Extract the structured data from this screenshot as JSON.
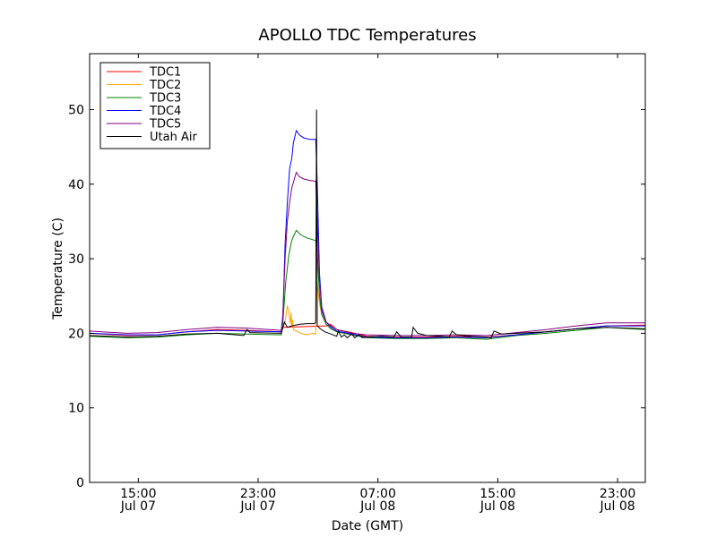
{
  "chart_data": {
    "type": "line",
    "title": "APOLLO TDC Temperatures",
    "xlabel": "Date (GMT)",
    "ylabel": "Temperature (C)",
    "xlim": [
      9.5,
      46.6
    ],
    "ylim": [
      0,
      57.5
    ],
    "yticks": [
      0,
      10,
      20,
      30,
      40,
      50
    ],
    "xticks": [
      {
        "x": 12.75,
        "time": "15:00",
        "date": "Jul 07"
      },
      {
        "x": 20.75,
        "time": "23:00",
        "date": "Jul 07"
      },
      {
        "x": 28.75,
        "time": "07:00",
        "date": "Jul 08"
      },
      {
        "x": 36.75,
        "time": "15:00",
        "date": "Jul 08"
      },
      {
        "x": 44.75,
        "time": "23:00",
        "date": "Jul 08"
      }
    ],
    "legend_position": "top-left",
    "series": [
      {
        "name": "TDC1",
        "color": "#ff0000",
        "x": [
          9.5,
          12,
          14,
          16,
          18,
          20,
          22.3,
          22.4,
          25.3,
          25.6,
          26,
          27,
          28,
          30,
          32,
          34,
          36,
          38,
          40,
          42,
          44,
          46.6
        ],
        "y": [
          20.0,
          19.7,
          19.8,
          20.2,
          20.5,
          20.4,
          20.2,
          20.8,
          21.0,
          21.2,
          20.5,
          20.1,
          19.6,
          19.5,
          19.5,
          19.6,
          19.5,
          19.8,
          20.2,
          20.6,
          21.0,
          21.1
        ]
      },
      {
        "name": "TDC2",
        "color": "#ffa500",
        "x": [
          22.3,
          22.55,
          22.7,
          22.8,
          22.9,
          22.95,
          23.0,
          23.05,
          23.1,
          23.3,
          23.6,
          24.0,
          24.4,
          24.6,
          24.62,
          24.7,
          24.85,
          25.0,
          25.3,
          25.6,
          26
        ],
        "y": [
          20.2,
          21.5,
          23.7,
          22.8,
          21.3,
          22.8,
          20.8,
          21.8,
          20.5,
          20.3,
          20.0,
          19.8,
          20.0,
          19.9,
          26.8,
          26.5,
          24.0,
          22.5,
          21.5,
          21.0,
          20.5
        ]
      },
      {
        "name": "TDC3",
        "color": "#008000",
        "x": [
          9.5,
          12,
          14,
          16,
          18,
          20,
          22.3,
          22.4,
          22.6,
          22.8,
          23.0,
          23.3,
          23.6,
          24.0,
          24.5,
          24.6,
          24.7,
          24.85,
          25.0,
          25.3,
          25.6,
          26,
          27,
          28,
          30,
          32,
          34,
          36,
          38,
          40,
          42,
          44,
          46.6
        ],
        "y": [
          19.6,
          19.4,
          19.5,
          19.8,
          20.0,
          19.9,
          19.8,
          21.5,
          27.0,
          30.5,
          32.5,
          33.8,
          33.2,
          32.8,
          32.5,
          32.4,
          31.0,
          25.0,
          22.5,
          21.2,
          20.6,
          20.2,
          19.8,
          19.4,
          19.3,
          19.3,
          19.4,
          19.2,
          19.7,
          20.0,
          20.4,
          20.8,
          20.5
        ]
      },
      {
        "name": "TDC4",
        "color": "#0000ff",
        "x": [
          9.5,
          12,
          14,
          16,
          18,
          20,
          22.3,
          22.4,
          22.55,
          22.7,
          22.85,
          23.0,
          23.1,
          23.3,
          23.5,
          23.8,
          24.2,
          24.6,
          24.7,
          24.85,
          25.0,
          25.3,
          25.6,
          26,
          27,
          28,
          30,
          32,
          34,
          36,
          38,
          40,
          42,
          44,
          46.6
        ],
        "y": [
          20.0,
          19.8,
          19.8,
          20.2,
          20.4,
          20.3,
          20.2,
          22.0,
          32.0,
          37.5,
          42.0,
          43.5,
          45.5,
          47.2,
          46.6,
          46.2,
          46.0,
          46.0,
          40.0,
          28.0,
          23.5,
          21.5,
          20.8,
          20.3,
          19.9,
          19.5,
          19.4,
          19.4,
          19.5,
          19.4,
          19.8,
          20.2,
          20.6,
          21.0,
          21.0
        ]
      },
      {
        "name": "TDC5",
        "color": "#800080",
        "x": [
          9.5,
          12,
          14,
          16,
          18,
          20,
          22.3,
          22.4,
          22.55,
          22.7,
          22.85,
          23.0,
          23.1,
          23.3,
          23.5,
          23.8,
          24.2,
          24.6,
          24.7,
          24.85,
          25.0,
          25.3,
          25.6,
          26,
          27,
          28,
          30,
          32,
          34,
          36,
          38,
          40,
          42,
          44,
          46.6
        ],
        "y": [
          20.3,
          20.0,
          20.1,
          20.5,
          20.8,
          20.7,
          20.4,
          22.5,
          30.0,
          35.0,
          37.5,
          39.5,
          40.2,
          41.6,
          41.0,
          40.7,
          40.5,
          40.4,
          35.0,
          27.0,
          23.0,
          21.5,
          21.0,
          20.5,
          20.0,
          19.8,
          19.7,
          19.7,
          19.8,
          19.7,
          20.1,
          20.5,
          21.0,
          21.4,
          21.4
        ]
      },
      {
        "name": "Utah Air",
        "color": "#000000",
        "x": [
          9.5,
          12,
          14,
          16,
          18,
          19.8,
          20.0,
          20.2,
          22.3,
          22.5,
          22.7,
          23.0,
          23.5,
          24.0,
          24.5,
          24.6,
          24.65,
          24.7,
          24.9,
          25.2,
          25.6,
          26.0,
          26.1,
          26.3,
          26.5,
          26.7,
          27.0,
          27.2,
          27.5,
          27.7,
          28.0,
          29.0,
          29.8,
          30.0,
          30.3,
          31.0,
          31.1,
          31.4,
          32.0,
          33.0,
          33.5,
          33.7,
          34.0,
          35.0,
          36.0,
          36.3,
          36.5,
          37.0,
          38.0,
          40.0,
          42.0,
          44.0,
          46.6
        ],
        "y": [
          19.7,
          19.5,
          19.6,
          19.9,
          20.0,
          19.7,
          20.5,
          20.1,
          20.0,
          21.5,
          20.8,
          21.0,
          21.2,
          21.3,
          21.3,
          21.5,
          50.0,
          21.0,
          20.6,
          20.2,
          19.9,
          19.6,
          20.3,
          19.5,
          19.8,
          19.4,
          19.9,
          19.4,
          19.8,
          19.4,
          19.5,
          19.6,
          19.5,
          20.2,
          19.5,
          19.5,
          20.8,
          20.0,
          19.7,
          19.6,
          19.5,
          20.3,
          19.8,
          19.6,
          19.5,
          19.4,
          20.3,
          19.9,
          20.0,
          20.2,
          20.6,
          20.8,
          20.6
        ]
      }
    ]
  }
}
